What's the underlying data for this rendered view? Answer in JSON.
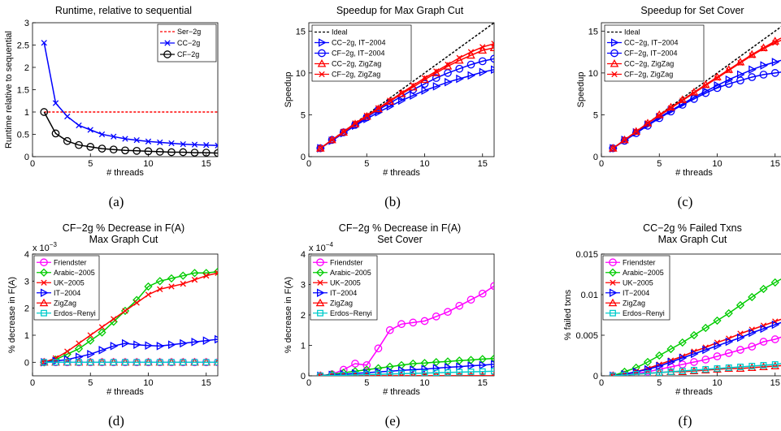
{
  "captions": [
    "(a)",
    "(b)",
    "(c)",
    "(d)",
    "(e)",
    "(f)"
  ],
  "chart_data": [
    {
      "type": "line",
      "title": "Runtime, relative to sequential",
      "xlabel": "# threads",
      "ylabel": "Runtime relative to sequential",
      "xlim": [
        0,
        16
      ],
      "ylim": [
        0,
        3
      ],
      "xticks": [
        "0",
        "5",
        "10",
        "15"
      ],
      "yticks": [
        "0",
        "0.5",
        "1",
        "1.5",
        "2",
        "2.5",
        "3"
      ],
      "legend_position": "top-right",
      "x": [
        1,
        2,
        3,
        4,
        5,
        6,
        7,
        8,
        9,
        10,
        11,
        12,
        13,
        14,
        15,
        16
      ],
      "series": [
        {
          "name": "Ser−2g",
          "color": "#ff0000",
          "marker": "none",
          "dash": true,
          "values": [
            1,
            1,
            1,
            1,
            1,
            1,
            1,
            1,
            1,
            1,
            1,
            1,
            1,
            1,
            1,
            1
          ]
        },
        {
          "name": "CC−2g",
          "color": "#0000ff",
          "marker": "x",
          "values": [
            2.55,
            1.2,
            0.9,
            0.7,
            0.6,
            0.5,
            0.45,
            0.4,
            0.37,
            0.34,
            0.32,
            0.3,
            0.28,
            0.27,
            0.26,
            0.25
          ]
        },
        {
          "name": "CF−2g",
          "color": "#000000",
          "marker": "circle",
          "values": [
            1.0,
            0.52,
            0.35,
            0.26,
            0.22,
            0.18,
            0.16,
            0.14,
            0.13,
            0.12,
            0.11,
            0.1,
            0.1,
            0.09,
            0.09,
            0.08
          ]
        }
      ]
    },
    {
      "type": "line",
      "title": "Speedup for Max Graph Cut",
      "xlabel": "# threads",
      "ylabel": "Speedup",
      "xlim": [
        0,
        16
      ],
      "ylim": [
        0,
        16
      ],
      "xticks": [
        "0",
        "5",
        "10",
        "15"
      ],
      "yticks": [
        "0",
        "5",
        "10",
        "15"
      ],
      "legend_position": "top-left",
      "x": [
        1,
        2,
        3,
        4,
        5,
        6,
        7,
        8,
        9,
        10,
        11,
        12,
        13,
        14,
        15,
        16
      ],
      "series": [
        {
          "name": "Ideal",
          "color": "#000000",
          "marker": "none",
          "dash": true,
          "values": [
            1,
            2,
            3,
            4,
            5,
            6,
            7,
            8,
            9,
            10,
            11,
            12,
            13,
            14,
            15,
            16
          ]
        },
        {
          "name": "CC−2g, IT−2004",
          "color": "#0000ff",
          "marker": "triangle-right",
          "values": [
            1,
            1.9,
            2.8,
            3.7,
            4.5,
            5.3,
            6.0,
            6.7,
            7.3,
            7.9,
            8.4,
            8.9,
            9.3,
            9.7,
            10.1,
            10.4
          ]
        },
        {
          "name": "CF−2g, IT−2004",
          "color": "#0000ff",
          "marker": "circle",
          "values": [
            1,
            2,
            2.9,
            3.8,
            4.7,
            5.6,
            6.4,
            7.2,
            8.0,
            8.7,
            9.4,
            10.0,
            10.5,
            11.0,
            11.4,
            11.7
          ]
        },
        {
          "name": "CC−2g, ZigZag",
          "color": "#ff0000",
          "marker": "triangle-up",
          "values": [
            1,
            2,
            2.9,
            3.9,
            4.8,
            5.7,
            6.6,
            7.5,
            8.3,
            9.2,
            10.0,
            10.8,
            11.5,
            12.1,
            12.7,
            13.0
          ]
        },
        {
          "name": "CF−2g, ZigZag",
          "color": "#ff0000",
          "marker": "x",
          "values": [
            1,
            2,
            3,
            4,
            4.9,
            5.8,
            6.7,
            7.6,
            8.5,
            9.4,
            10.2,
            11.0,
            11.8,
            12.5,
            13.1,
            13.5
          ]
        }
      ]
    },
    {
      "type": "line",
      "title": "Speedup for Set Cover",
      "xlabel": "# threads",
      "ylabel": "Speedup",
      "xlim": [
        0,
        16
      ],
      "ylim": [
        0,
        16
      ],
      "xticks": [
        "0",
        "5",
        "10",
        "15"
      ],
      "yticks": [
        "0",
        "5",
        "10",
        "15"
      ],
      "legend_position": "top-left",
      "x": [
        1,
        2,
        3,
        4,
        5,
        6,
        7,
        8,
        9,
        10,
        11,
        12,
        13,
        14,
        15,
        16
      ],
      "series": [
        {
          "name": "Ideal",
          "color": "#000000",
          "marker": "none",
          "dash": true,
          "values": [
            1,
            2,
            3,
            4,
            5,
            6,
            7,
            8,
            9,
            10,
            11,
            12,
            13,
            14,
            15,
            16
          ]
        },
        {
          "name": "CC−2g, IT−2004",
          "color": "#0000ff",
          "marker": "triangle-right",
          "values": [
            1,
            2,
            2.9,
            3.8,
            4.7,
            5.5,
            6.3,
            7.1,
            7.8,
            8.5,
            9.2,
            9.8,
            10.4,
            10.9,
            11.3,
            11.7
          ]
        },
        {
          "name": "CF−2g, IT−2004",
          "color": "#0000ff",
          "marker": "circle",
          "values": [
            1,
            1.9,
            2.8,
            3.7,
            4.6,
            5.4,
            6.2,
            6.9,
            7.6,
            8.2,
            8.7,
            9.1,
            9.5,
            9.8,
            10.0,
            10.2
          ]
        },
        {
          "name": "CC−2g, ZigZag",
          "color": "#ff0000",
          "marker": "triangle-up",
          "values": [
            1,
            2,
            3,
            4,
            5,
            5.9,
            6.8,
            7.7,
            8.6,
            9.5,
            10.4,
            11.3,
            12.2,
            13.0,
            13.8,
            14.5
          ]
        },
        {
          "name": "CF−2g, ZigZag",
          "color": "#ff0000",
          "marker": "x",
          "values": [
            1,
            2,
            3,
            4,
            4.9,
            5.8,
            6.7,
            7.6,
            8.5,
            9.4,
            10.3,
            11.2,
            12.1,
            12.9,
            13.6,
            14.2
          ]
        }
      ]
    },
    {
      "type": "line",
      "title": "CF−2g % Decrease in F(A)",
      "subtitle": "Max Graph Cut",
      "xlabel": "# threads",
      "ylabel": "% decrease in F(A)",
      "exponent_label": "x 10",
      "exponent_power": "−3",
      "xlim": [
        0,
        16
      ],
      "ylim": [
        -0.5,
        4
      ],
      "xticks": [
        "0",
        "5",
        "10",
        "15"
      ],
      "yticks": [
        "0",
        "1",
        "2",
        "3",
        "4"
      ],
      "legend_position": "top-left",
      "x": [
        1,
        2,
        3,
        4,
        5,
        6,
        7,
        8,
        9,
        10,
        11,
        12,
        13,
        14,
        15,
        16
      ],
      "series": [
        {
          "name": "Friendster",
          "color": "#ff00ff",
          "marker": "circle",
          "values": [
            0,
            0,
            0,
            0,
            0,
            0,
            0,
            0,
            0,
            0,
            0,
            0,
            0,
            0,
            0,
            0
          ]
        },
        {
          "name": "Arabic−2005",
          "color": "#00cc00",
          "marker": "diamond",
          "values": [
            0,
            0.1,
            0.3,
            0.5,
            0.8,
            1.1,
            1.5,
            1.9,
            2.3,
            2.8,
            3.0,
            3.1,
            3.2,
            3.3,
            3.3,
            3.35
          ]
        },
        {
          "name": "UK−2005",
          "color": "#ff0000",
          "marker": "x",
          "values": [
            0,
            0.15,
            0.4,
            0.7,
            1.0,
            1.3,
            1.6,
            1.9,
            2.2,
            2.5,
            2.7,
            2.8,
            2.9,
            3.05,
            3.2,
            3.3
          ]
        },
        {
          "name": "IT−2004",
          "color": "#0000ff",
          "marker": "triangle-right",
          "values": [
            0,
            0.05,
            0.1,
            0.2,
            0.3,
            0.45,
            0.6,
            0.7,
            0.65,
            0.62,
            0.6,
            0.65,
            0.7,
            0.75,
            0.8,
            0.85
          ]
        },
        {
          "name": "ZigZag",
          "color": "#ff0000",
          "marker": "triangle-up",
          "values": [
            0,
            0,
            0,
            0,
            0,
            0,
            0,
            0,
            0,
            0,
            0,
            0,
            0,
            0,
            0,
            0
          ]
        },
        {
          "name": "Erdos−Renyi",
          "color": "#00cccc",
          "marker": "square",
          "values": [
            0,
            0,
            0,
            0,
            0,
            0,
            0,
            0,
            0,
            0,
            0,
            0,
            0,
            0,
            0,
            0
          ]
        }
      ]
    },
    {
      "type": "line",
      "title": "CF−2g % Decrease in F(A)",
      "subtitle": "Set Cover",
      "xlabel": "# threads",
      "ylabel": "% decrease in F(A)",
      "exponent_label": "x 10",
      "exponent_power": "−4",
      "xlim": [
        0,
        16
      ],
      "ylim": [
        0,
        4
      ],
      "xticks": [
        "0",
        "5",
        "10",
        "15"
      ],
      "yticks": [
        "0",
        "1",
        "2",
        "3",
        "4"
      ],
      "legend_position": "top-left",
      "x": [
        1,
        2,
        3,
        4,
        5,
        6,
        7,
        8,
        9,
        10,
        11,
        12,
        13,
        14,
        15,
        16
      ],
      "series": [
        {
          "name": "Friendster",
          "color": "#ff00ff",
          "marker": "circle",
          "values": [
            0,
            0.05,
            0.2,
            0.4,
            0.35,
            0.9,
            1.5,
            1.7,
            1.75,
            1.8,
            1.95,
            2.1,
            2.3,
            2.5,
            2.7,
            2.95
          ]
        },
        {
          "name": "Arabic−2005",
          "color": "#00cc00",
          "marker": "diamond",
          "values": [
            0,
            0.05,
            0.1,
            0.15,
            0.2,
            0.25,
            0.3,
            0.35,
            0.4,
            0.42,
            0.45,
            0.47,
            0.5,
            0.52,
            0.55,
            0.57
          ]
        },
        {
          "name": "UK−2005",
          "color": "#ff0000",
          "marker": "x",
          "values": [
            0,
            0,
            0,
            0,
            0,
            0,
            0,
            0,
            0,
            0,
            0,
            0,
            0,
            0,
            0,
            0
          ]
        },
        {
          "name": "IT−2004",
          "color": "#0000ff",
          "marker": "triangle-right",
          "values": [
            0,
            0.03,
            0.05,
            0.08,
            0.1,
            0.13,
            0.15,
            0.18,
            0.2,
            0.22,
            0.25,
            0.28,
            0.3,
            0.33,
            0.35,
            0.38
          ]
        },
        {
          "name": "ZigZag",
          "color": "#ff0000",
          "marker": "triangle-up",
          "values": [
            0,
            0,
            0,
            0,
            0,
            0,
            0,
            0,
            0,
            0,
            0,
            0,
            0,
            0,
            0,
            0
          ]
        },
        {
          "name": "Erdos−Renyi",
          "color": "#00cccc",
          "marker": "square",
          "values": [
            0,
            0.01,
            0.02,
            0.03,
            0.04,
            0.05,
            0.06,
            0.07,
            0.08,
            0.09,
            0.1,
            0.11,
            0.12,
            0.13,
            0.14,
            0.15
          ]
        }
      ]
    },
    {
      "type": "line",
      "title": "CC−2g % Failed Txns",
      "subtitle": "Max Graph Cut",
      "xlabel": "# threads",
      "ylabel": "% failed txns",
      "xlim": [
        0,
        16
      ],
      "ylim": [
        0,
        0.015
      ],
      "xticks": [
        "0",
        "5",
        "10",
        "15"
      ],
      "yticks": [
        "0",
        "0.005",
        "0.01",
        "0.015"
      ],
      "legend_position": "top-left",
      "x": [
        1,
        2,
        3,
        4,
        5,
        6,
        7,
        8,
        9,
        10,
        11,
        12,
        13,
        14,
        15,
        16
      ],
      "series": [
        {
          "name": "Friendster",
          "color": "#ff00ff",
          "marker": "circle",
          "values": [
            0,
            0.0001,
            0.0003,
            0.0005,
            0.0008,
            0.0011,
            0.0014,
            0.0017,
            0.002,
            0.0024,
            0.0028,
            0.0032,
            0.0036,
            0.0042,
            0.0045,
            0.005
          ]
        },
        {
          "name": "Arabic−2005",
          "color": "#00cc00",
          "marker": "diamond",
          "values": [
            0,
            0.0005,
            0.001,
            0.0017,
            0.0025,
            0.0033,
            0.0041,
            0.005,
            0.0059,
            0.0068,
            0.0077,
            0.0087,
            0.0097,
            0.0107,
            0.0115,
            0.0123
          ]
        },
        {
          "name": "UK−2005",
          "color": "#ff0000",
          "marker": "x",
          "values": [
            0,
            0.0002,
            0.0005,
            0.0009,
            0.0014,
            0.0019,
            0.0024,
            0.003,
            0.0035,
            0.0041,
            0.0046,
            0.0052,
            0.0057,
            0.0062,
            0.0067,
            0.0072
          ]
        },
        {
          "name": "IT−2004",
          "color": "#0000ff",
          "marker": "triangle-right",
          "values": [
            0,
            0.0002,
            0.0005,
            0.0008,
            0.0012,
            0.0017,
            0.0022,
            0.0027,
            0.0032,
            0.0037,
            0.0042,
            0.0047,
            0.0053,
            0.0058,
            0.0063,
            0.0068
          ]
        },
        {
          "name": "ZigZag",
          "color": "#ff0000",
          "marker": "triangle-up",
          "values": [
            0,
            0.0001,
            0.0002,
            0.0003,
            0.0004,
            0.0005,
            0.0005,
            0.0006,
            0.0007,
            0.0008,
            0.0009,
            0.0009,
            0.001,
            0.0011,
            0.0012,
            0.0013
          ]
        },
        {
          "name": "Erdos−Renyi",
          "color": "#00cccc",
          "marker": "square",
          "values": [
            0,
            0.0001,
            0.0002,
            0.0003,
            0.0004,
            0.0005,
            0.0006,
            0.0007,
            0.0008,
            0.0009,
            0.001,
            0.0011,
            0.0012,
            0.0013,
            0.0014,
            0.0016
          ]
        }
      ]
    }
  ]
}
